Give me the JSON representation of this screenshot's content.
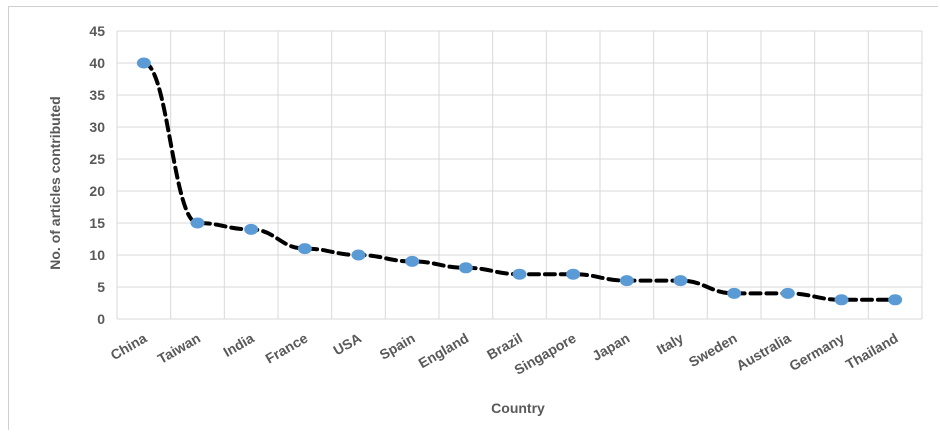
{
  "chart_data": {
    "type": "line",
    "xlabel": "Country",
    "ylabel": "No. of articles contributed",
    "categories": [
      "China",
      "Taiwan",
      "India",
      "France",
      "USA",
      "Spain",
      "England",
      "Brazil",
      "Singapore",
      "Japan",
      "Italy",
      "Sweden",
      "Australia",
      "Germany",
      "Thailand"
    ],
    "series": [
      {
        "values": [
          40,
          15,
          14,
          11,
          10,
          9,
          8,
          7,
          7,
          6,
          6,
          4,
          4,
          3,
          3
        ]
      }
    ],
    "ylim": [
      0,
      45
    ],
    "yticks": [
      "0",
      "5",
      "10",
      "15",
      "20",
      "25",
      "30",
      "35",
      "40",
      "45"
    ],
    "grid": true,
    "line_style": "dashed",
    "colors": {
      "line": "#000000",
      "marker": "#5b9bd5",
      "grid": "#d9d9d9",
      "text": "#595959"
    }
  }
}
